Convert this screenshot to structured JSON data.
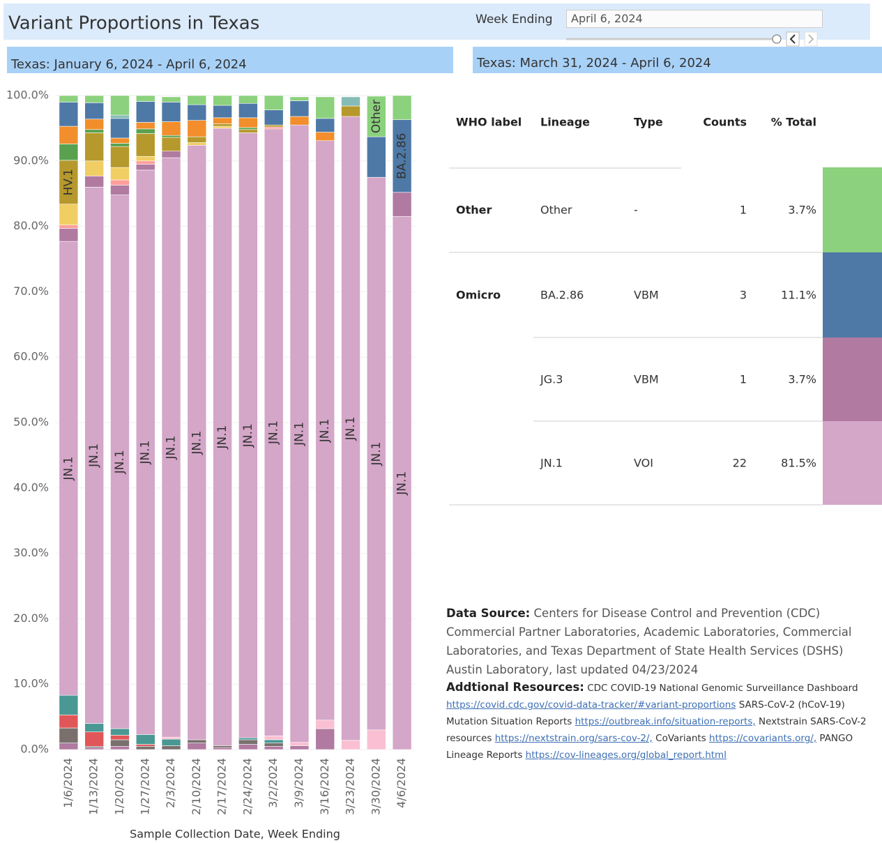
{
  "header": {
    "title": "Variant Proportions in Texas",
    "filter_label": "Week Ending",
    "filter_value": "April 6, 2024"
  },
  "left_panel_title": "Texas: January 6, 2024 - April 6, 2024",
  "right_panel_title": "Texas: March 31, 2024 - April 6, 2024",
  "chart_data": {
    "type": "stacked-bar",
    "x_label": "Sample Collection Date, Week Ending",
    "categories": [
      "1/6/2024",
      "1/13/2024",
      "1/20/2024",
      "1/27/2024",
      "2/3/2024",
      "2/10/2024",
      "2/17/2024",
      "2/24/2024",
      "3/2/2024",
      "3/9/2024",
      "3/16/2024",
      "3/23/2024",
      "3/30/2024",
      "4/6/2024"
    ],
    "ylim": [
      0,
      100
    ],
    "yticks": [
      {
        "value": 0,
        "label": "0.0%"
      },
      {
        "value": 10,
        "label": "10.0%"
      },
      {
        "value": 20,
        "label": "20.0%"
      },
      {
        "value": 30,
        "label": "30.0%"
      },
      {
        "value": 40,
        "label": "40.0%"
      },
      {
        "value": 50,
        "label": "50.0%"
      },
      {
        "value": 60,
        "label": "60.0%"
      },
      {
        "value": 70,
        "label": "70.0%"
      },
      {
        "value": 80,
        "label": "80.0%"
      },
      {
        "value": 90,
        "label": "90.0%"
      },
      {
        "value": 100,
        "label": "100.0%"
      }
    ],
    "grid": true,
    "series": [
      {
        "color": "#b07aa1",
        "values": [
          1,
          0.3,
          0.5,
          0,
          0,
          1,
          0.3,
          0.8,
          0.5,
          0.6,
          3.2,
          0,
          0,
          0
        ]
      },
      {
        "color": "#79706e",
        "values": [
          2.3,
          0.2,
          1,
          0.5,
          0.6,
          0.5,
          0.3,
          0.7,
          0.5,
          0,
          0,
          0,
          0,
          0
        ]
      },
      {
        "color": "#e15759",
        "values": [
          2,
          2.2,
          0.7,
          0.3,
          0,
          0,
          0,
          0,
          0,
          0,
          0,
          0,
          0,
          0
        ]
      },
      {
        "color": "#499894",
        "values": [
          3,
          1.3,
          1,
          1.5,
          1,
          0,
          0,
          0.3,
          0.5,
          0,
          0,
          0,
          0,
          0
        ]
      },
      {
        "color": "#fabfd2",
        "values": [
          0,
          0,
          0,
          0,
          0.3,
          0,
          0,
          0,
          0.6,
          0.5,
          1.3,
          1.4,
          3,
          0
        ]
      },
      {
        "name": "JN.1",
        "color": "#d4a6c8",
        "values": [
          69.4,
          82,
          81.6,
          86.3,
          88.6,
          90.9,
          94.4,
          92.5,
          92.8,
          94.4,
          88.6,
          95.4,
          84.5,
          81.5
        ]
      },
      {
        "color": "#b07aa1",
        "values": [
          2,
          1.7,
          1.5,
          0.9,
          1,
          0,
          0,
          0,
          0,
          0,
          0,
          0,
          0,
          3.7
        ]
      },
      {
        "color": "#ff9d9a",
        "values": [
          0.5,
          0,
          0.8,
          0.5,
          0,
          0,
          0,
          0,
          0.3,
          0,
          0,
          0,
          0,
          0
        ]
      },
      {
        "color": "#f1ce63",
        "values": [
          3.2,
          2.3,
          1.9,
          0.7,
          0,
          0.4,
          0.3,
          0,
          0,
          0,
          0,
          0,
          0,
          0
        ]
      },
      {
        "name": "HV.1",
        "color": "#b6992d",
        "values": [
          6.7,
          4.3,
          3.2,
          3.5,
          2.1,
          0.9,
          0.4,
          0.5,
          0.3,
          0,
          0,
          1.6,
          0,
          0
        ]
      },
      {
        "color": "#59a14f",
        "values": [
          2.5,
          0.5,
          0.5,
          0.7,
          0.3,
          0,
          0,
          0.3,
          0,
          0,
          0,
          0,
          0,
          0
        ]
      },
      {
        "color": "#f28e2b",
        "values": [
          2.7,
          1.6,
          0.8,
          1,
          2.1,
          2.5,
          0.9,
          1.5,
          0,
          1.3,
          1.3,
          0,
          0,
          0
        ]
      },
      {
        "name": "BA.2.86",
        "color": "#4e79a7",
        "values": [
          3.7,
          2.5,
          3,
          3.2,
          3,
          2.4,
          1.9,
          2.2,
          2.3,
          2.4,
          2.1,
          0,
          6.2,
          11.1
        ]
      },
      {
        "color": "#86bcb6",
        "values": [
          0,
          0,
          0.5,
          0,
          0,
          0,
          0,
          0,
          0,
          0,
          0,
          1.4,
          0,
          0
        ]
      },
      {
        "name": "Other",
        "color": "#8cd17d",
        "values": [
          1,
          1.1,
          3,
          0.9,
          0.8,
          1.4,
          1.5,
          1.2,
          2.2,
          0.6,
          3.3,
          0,
          6.2,
          3.7
        ]
      }
    ]
  },
  "table": {
    "columns": [
      "WHO label",
      "Lineage",
      "Type",
      "Counts",
      "% Total"
    ],
    "rows": [
      [
        "Other",
        "Other",
        "-",
        1,
        "3.7%"
      ],
      [
        "Omicro",
        "BA.2.86",
        "VBM",
        3,
        "11.1%"
      ],
      [
        null,
        "JG.3",
        "VBM",
        1,
        "3.7%"
      ],
      [
        null,
        "JN.1",
        "VOI",
        22,
        "81.5%"
      ]
    ],
    "row_colors": [
      "#8cd17d",
      "#4e79a7",
      "#b07aa1",
      "#d4a6c8"
    ]
  },
  "sources": {
    "data_source_label": "Data Source:",
    "data_source_text": "Centers for Disease Control and Prevention (CDC) Commercial Partner Laboratories, Academic Laboratories, Commercial Laboratories,  and Texas Department of State Health Services (DSHS) Austin Laboratory, last updated 04/23/2024",
    "resources_label": "Addtional Resources:",
    "resources": [
      {
        "text": "CDC COVID-19 National Genomic Surveillance Dashboard",
        "link": "https://covid.cdc.gov/covid-data-tracker/#variant-proportions"
      },
      {
        "text": "SARS-CoV-2 (hCoV-19) Mutation Situation Reports",
        "link": "https://outbreak.info/situation-reports,"
      },
      {
        "text": "Nextstrain SARS-CoV-2 resources",
        "link": "https://nextstrain.org/sars-cov-2/,"
      },
      {
        "text": "CoVariants",
        "link": "https://covariants.org/,"
      },
      {
        "text": "PANGO Lineage Reports",
        "link": "https://cov-lineages.org/global_report.html"
      }
    ]
  }
}
